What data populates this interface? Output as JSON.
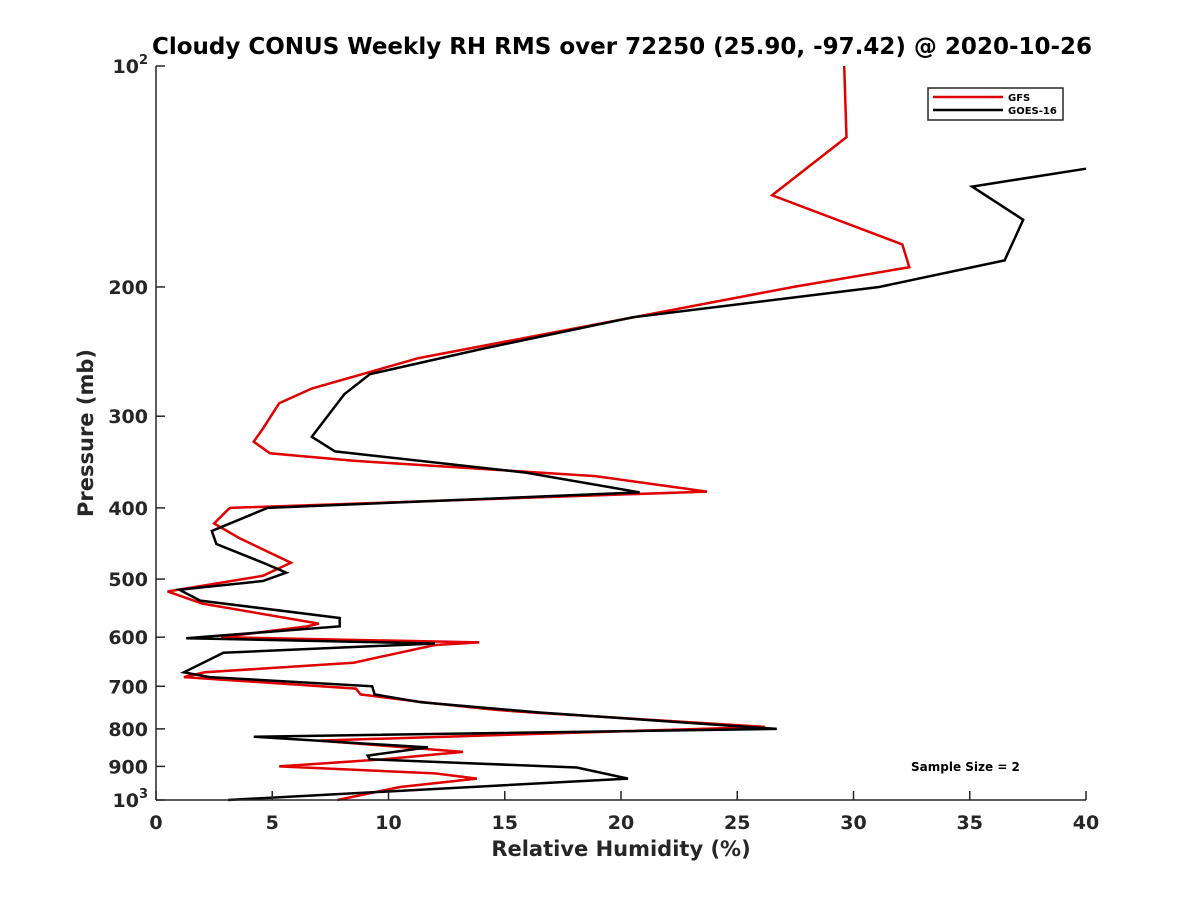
{
  "chart_data": {
    "type": "line",
    "title": "Cloudy CONUS Weekly RH RMS over 72250 (25.90, -97.42) @ 2020-10-26",
    "xlabel": "Relative Humidity (%)",
    "ylabel": "Pressure (mb)",
    "xlim": [
      0,
      40
    ],
    "ylim": [
      100,
      1000
    ],
    "y_scale": "log",
    "y_reversed": true,
    "grid": false,
    "legend_position": "top-right",
    "x_ticks": [
      "0",
      "5",
      "10",
      "15",
      "20",
      "25",
      "30",
      "35",
      "40"
    ],
    "y_ticks": [
      {
        "value": 100,
        "base": "10",
        "sup": "2"
      },
      {
        "value": 200,
        "text": "200"
      },
      {
        "value": 300,
        "text": "300"
      },
      {
        "value": 400,
        "text": "400"
      },
      {
        "value": 500,
        "text": "500"
      },
      {
        "value": 600,
        "text": "600"
      },
      {
        "value": 700,
        "text": "700"
      },
      {
        "value": 800,
        "text": "800"
      },
      {
        "value": 900,
        "text": "900"
      },
      {
        "value": 1000,
        "base": "10",
        "sup": "3"
      }
    ],
    "annotation": "Sample Size = 2",
    "series": [
      {
        "name": "GFS",
        "color": "#e00000",
        "points": [
          [
            29.6,
            100
          ],
          [
            29.7,
            125
          ],
          [
            26.5,
            150
          ],
          [
            32.1,
            175
          ],
          [
            32.4,
            188
          ],
          [
            27.4,
            200
          ],
          [
            11.3,
            250
          ],
          [
            6.7,
            275
          ],
          [
            5.3,
            288
          ],
          [
            4.6,
            312
          ],
          [
            4.2,
            325
          ],
          [
            4.9,
            337
          ],
          [
            8.5,
            345
          ],
          [
            18.9,
            362
          ],
          [
            23.7,
            380
          ],
          [
            3.2,
            400
          ],
          [
            3.1,
            402
          ],
          [
            2.5,
            420
          ],
          [
            3.6,
            440
          ],
          [
            5.8,
            475
          ],
          [
            4.6,
            495
          ],
          [
            0.5,
            520
          ],
          [
            2.0,
            540
          ],
          [
            7.0,
            575
          ],
          [
            6.5,
            580
          ],
          [
            2.8,
            600
          ],
          [
            13.9,
            610
          ],
          [
            12.0,
            615
          ],
          [
            8.5,
            650
          ],
          [
            2.1,
            670
          ],
          [
            1.2,
            680
          ],
          [
            8.6,
            705
          ],
          [
            8.8,
            718
          ],
          [
            11.5,
            736
          ],
          [
            14.3,
            752
          ],
          [
            15.4,
            757
          ],
          [
            16.2,
            760
          ],
          [
            26.2,
            795
          ],
          [
            7.0,
            830
          ],
          [
            13.2,
            860
          ],
          [
            9.8,
            880
          ],
          [
            5.3,
            900
          ],
          [
            12.0,
            920
          ],
          [
            13.8,
            935
          ],
          [
            10.5,
            960
          ],
          [
            7.8,
            1000
          ]
        ]
      },
      {
        "name": "GOES-16",
        "color": "#000000",
        "points": [
          [
            40.0,
            138
          ],
          [
            35.1,
            146
          ],
          [
            37.3,
            162
          ],
          [
            36.5,
            184
          ],
          [
            31.1,
            200
          ],
          [
            20.5,
            220
          ],
          [
            14.0,
            243
          ],
          [
            9.2,
            263
          ],
          [
            8.1,
            280
          ],
          [
            6.7,
            320
          ],
          [
            7.7,
            335
          ],
          [
            15.9,
            358
          ],
          [
            20.8,
            381
          ],
          [
            4.8,
            400
          ],
          [
            2.4,
            430
          ],
          [
            2.6,
            448
          ],
          [
            4.6,
            475
          ],
          [
            5.6,
            490
          ],
          [
            4.6,
            503
          ],
          [
            1.0,
            517
          ],
          [
            1.9,
            535
          ],
          [
            7.9,
            565
          ],
          [
            7.9,
            580
          ],
          [
            1.3,
            602
          ],
          [
            12.0,
            612
          ],
          [
            2.9,
            630
          ],
          [
            1.2,
            670
          ],
          [
            2.3,
            680
          ],
          [
            9.3,
            700
          ],
          [
            9.4,
            718
          ],
          [
            11.4,
            736
          ],
          [
            16.5,
            760
          ],
          [
            26.7,
            800
          ],
          [
            4.2,
            820
          ],
          [
            11.7,
            848
          ],
          [
            9.1,
            870
          ],
          [
            9.2,
            880
          ],
          [
            18.1,
            903
          ],
          [
            20.3,
            935
          ],
          [
            3.1,
            1000
          ]
        ]
      }
    ]
  }
}
